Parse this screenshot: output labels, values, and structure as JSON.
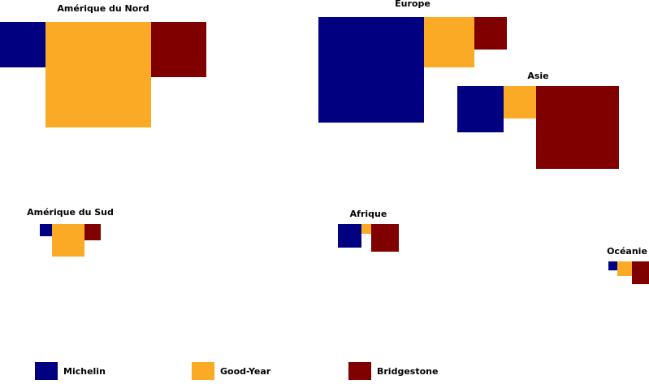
{
  "chart_data": {
    "type": "area",
    "series": [
      {
        "name": "Michelin",
        "color": "#000080"
      },
      {
        "name": "Good-Year",
        "color": "#FBAA26"
      },
      {
        "name": "Bridgestone",
        "color": "#800000"
      }
    ],
    "regions": [
      {
        "name": "Amérique du Nord",
        "values": [
          56,
          130,
          68
        ]
      },
      {
        "name": "Europe",
        "values": [
          130,
          62,
          40
        ]
      },
      {
        "name": "Asie",
        "values": [
          57,
          40,
          102
        ]
      },
      {
        "name": "Amérique du Sud",
        "values": [
          15,
          40,
          20
        ]
      },
      {
        "name": "Afrique",
        "values": [
          29,
          12,
          34
        ]
      },
      {
        "name": "Océanie",
        "values": [
          11,
          18,
          28
        ]
      }
    ],
    "legend_position": "bottom"
  }
}
